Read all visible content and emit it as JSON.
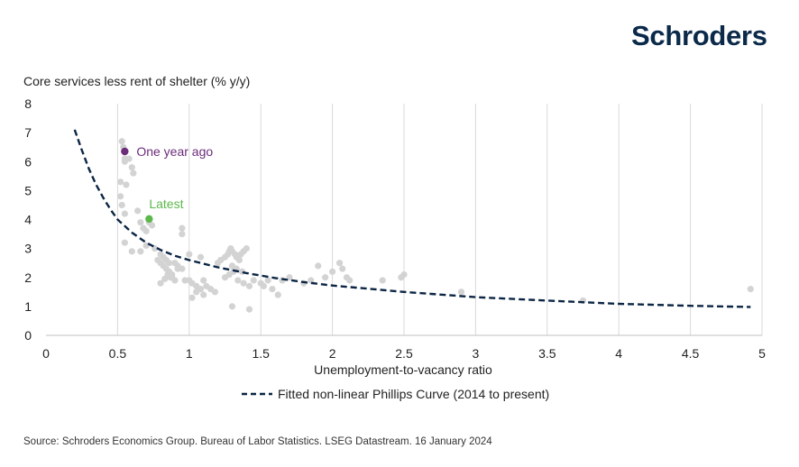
{
  "logo": "Schroders",
  "footer": "Source: Schroders Economics Group. Bureau of Labor Statistics. LSEG Datastream. 16 January 2024",
  "chart_data": {
    "type": "scatter",
    "ylabel": "Core services less rent of shelter (% y/y)",
    "xlabel": "Unemployment-to-vacancy ratio",
    "xlim": [
      0,
      5
    ],
    "ylim": [
      0,
      8
    ],
    "xticks": [
      "0",
      "0.5",
      "1",
      "1.5",
      "2",
      "2.5",
      "3",
      "3.5",
      "4",
      "4.5",
      "5"
    ],
    "yticks": [
      "0",
      "1",
      "2",
      "3",
      "4",
      "5",
      "6",
      "7",
      "8"
    ],
    "grid": "vertical",
    "legend": "bottom",
    "colors": {
      "points": "#d3d3d3",
      "curve": "#0b2545",
      "one_year_ago": "#6b2c7a",
      "latest": "#5cb84a"
    },
    "points": {
      "x": [
        0.53,
        0.54,
        0.55,
        0.55,
        0.58,
        0.6,
        0.61,
        0.52,
        0.56,
        0.52,
        0.53,
        0.55,
        0.64,
        0.66,
        0.68,
        0.7,
        0.72,
        0.74,
        0.7,
        0.66,
        0.6,
        0.55,
        0.78,
        0.8,
        0.82,
        0.84,
        0.86,
        0.88,
        0.8,
        0.82,
        0.84,
        0.86,
        0.88,
        0.9,
        0.83,
        0.85,
        0.87,
        0.92,
        0.95,
        0.97,
        1.0,
        1.02,
        1.05,
        1.08,
        1.1,
        1.12,
        1.15,
        1.18,
        1.2,
        1.22,
        1.25,
        1.27,
        1.28,
        1.29,
        1.3,
        1.32,
        1.33,
        1.35,
        1.36,
        1.38,
        1.4,
        1.3,
        1.33,
        1.37,
        1.25,
        1.28,
        1.31,
        1.34,
        1.38,
        1.42,
        1.45,
        1.5,
        1.52,
        1.55,
        1.58,
        1.62,
        1.65,
        1.7,
        1.8,
        1.85,
        1.9,
        1.95,
        2.0,
        2.05,
        2.07,
        2.1,
        2.12,
        2.35,
        2.48,
        2.5,
        2.9,
        3.75,
        4.92,
        1.3,
        1.42,
        1.0,
        1.08,
        0.95,
        0.95,
        0.76,
        0.8,
        0.9,
        0.92,
        1.05,
        1.1,
        1.02
      ],
      "y": [
        6.7,
        6.5,
        6.1,
        6.0,
        6.1,
        5.8,
        5.6,
        5.3,
        5.2,
        4.8,
        4.5,
        4.2,
        4.3,
        3.9,
        3.7,
        3.6,
        3.9,
        3.8,
        3.1,
        2.9,
        2.9,
        3.2,
        2.6,
        2.5,
        2.4,
        2.3,
        2.2,
        2.1,
        2.8,
        2.7,
        2.6,
        2.5,
        2.0,
        1.9,
        1.95,
        2.1,
        2.0,
        2.4,
        2.3,
        1.9,
        1.9,
        1.8,
        1.7,
        1.6,
        1.9,
        1.7,
        1.6,
        1.5,
        2.5,
        2.6,
        2.7,
        2.8,
        2.9,
        3.0,
        2.9,
        2.8,
        2.7,
        2.6,
        2.8,
        2.9,
        3.0,
        2.4,
        2.3,
        2.2,
        2.0,
        2.1,
        2.2,
        1.9,
        1.8,
        1.7,
        1.9,
        1.8,
        1.7,
        1.9,
        1.6,
        1.4,
        1.9,
        2.0,
        1.8,
        1.9,
        2.4,
        2.0,
        2.2,
        2.5,
        2.3,
        2.0,
        1.9,
        1.9,
        2.0,
        2.1,
        1.5,
        1.2,
        1.6,
        1.0,
        0.9,
        2.8,
        2.7,
        3.7,
        3.5,
        3.0,
        1.8,
        2.5,
        2.3,
        1.5,
        1.4,
        1.3
      ]
    },
    "highlights": [
      {
        "label": "One year ago",
        "x": 0.55,
        "y": 6.35
      },
      {
        "label": "Latest",
        "x": 0.72,
        "y": 4.02
      }
    ],
    "curve": {
      "name": "Fitted non-linear Phillips Curve (2014 to present)",
      "x": [
        0.2,
        0.25,
        0.3,
        0.35,
        0.4,
        0.45,
        0.5,
        0.6,
        0.7,
        0.8,
        0.9,
        1.0,
        1.2,
        1.4,
        1.6,
        1.8,
        2.0,
        2.5,
        3.0,
        3.5,
        4.0,
        4.5,
        4.92
      ],
      "y": [
        7.1,
        6.4,
        5.75,
        5.2,
        4.75,
        4.35,
        4.0,
        3.55,
        3.2,
        2.95,
        2.75,
        2.6,
        2.35,
        2.15,
        1.98,
        1.84,
        1.72,
        1.5,
        1.32,
        1.2,
        1.09,
        1.02,
        0.98
      ]
    }
  }
}
